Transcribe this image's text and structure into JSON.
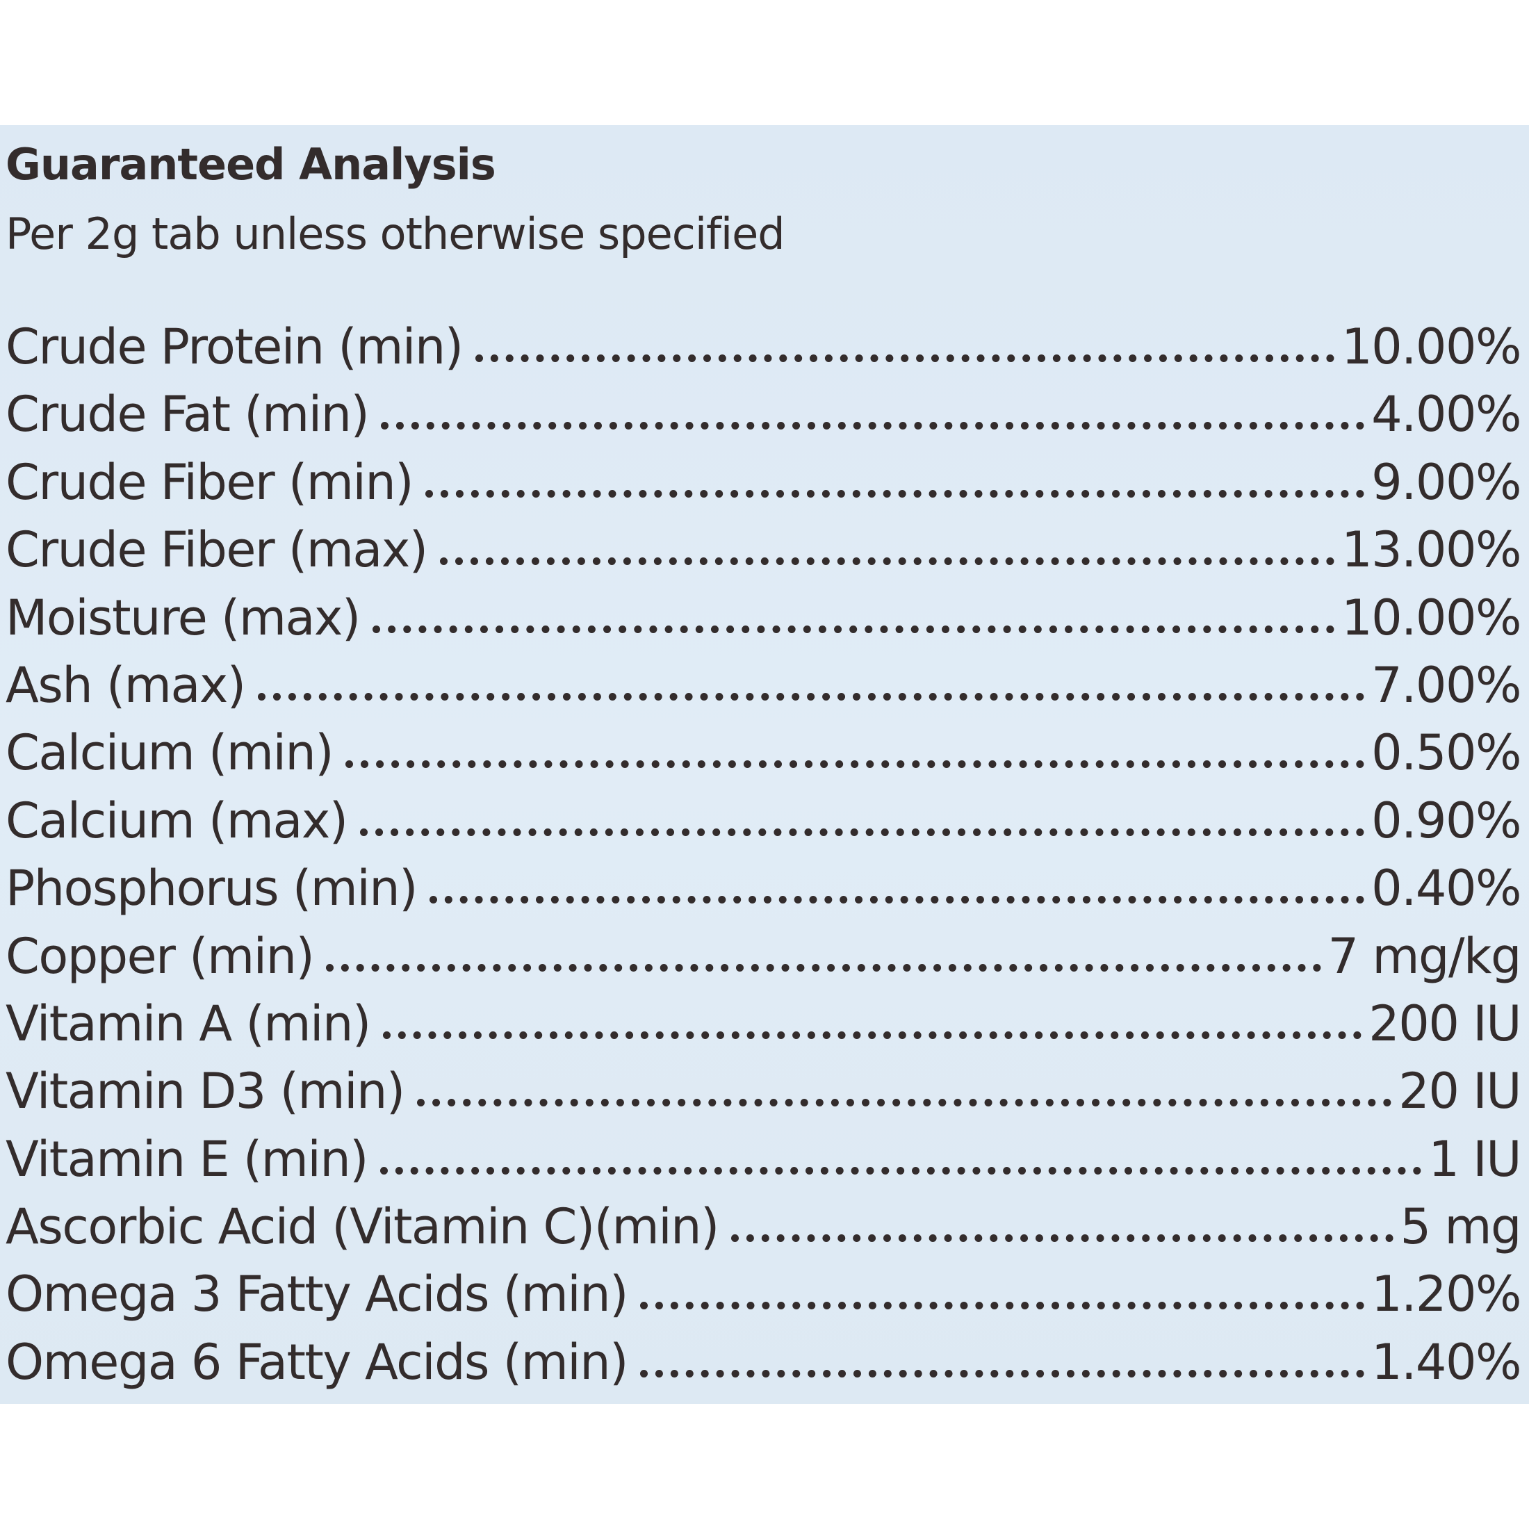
{
  "label": {
    "title": "Guaranteed Analysis",
    "subtitle": "Per 2g tab unless otherwise specified",
    "rows": [
      {
        "name": "Crude Protein (min)",
        "value": "10.00%"
      },
      {
        "name": "Crude Fat (min)",
        "value": "4.00%"
      },
      {
        "name": "Crude Fiber (min)",
        "value": "9.00%"
      },
      {
        "name": "Crude Fiber (max)",
        "value": "13.00%"
      },
      {
        "name": "Moisture (max)",
        "value": "10.00%"
      },
      {
        "name": "Ash (max)",
        "value": "7.00%"
      },
      {
        "name": "Calcium (min)",
        "value": "0.50%"
      },
      {
        "name": "Calcium (max)",
        "value": "0.90%"
      },
      {
        "name": "Phosphorus (min)",
        "value": "0.40%"
      },
      {
        "name": "Copper (min)",
        "value": "7 mg/kg"
      },
      {
        "name": "Vitamin A (min)",
        "value": "200 IU"
      },
      {
        "name": "Vitamin D3 (min)",
        "value": "20 IU"
      },
      {
        "name": "Vitamin E (min)",
        "value": "1 IU"
      },
      {
        "name": "Ascorbic Acid (Vitamin C)(min)",
        "value": "5 mg"
      },
      {
        "name": "Omega 3 Fatty Acids (min)",
        "value": "1.20%"
      },
      {
        "name": "Omega 6 Fatty Acids (min)",
        "value": "1.40%"
      }
    ]
  },
  "colors": {
    "panel": "#dfeaf5",
    "ink": "#332c2c",
    "page": "#ffffff"
  }
}
